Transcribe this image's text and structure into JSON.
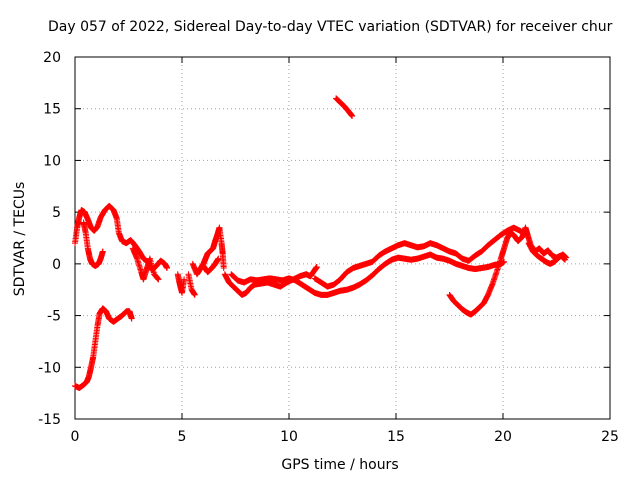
{
  "chart_data": {
    "type": "scatter",
    "title": "Day 057 of 2022, Sidereal Day-to-day VTEC variation (SDTVAR) for receiver chur",
    "xlabel": "GPS time / hours",
    "ylabel": "SDTVAR / TECUs",
    "xlim": [
      0,
      25
    ],
    "ylim": [
      -15,
      20
    ],
    "xticks": [
      0,
      5,
      10,
      15,
      20,
      25
    ],
    "yticks": [
      -15,
      -10,
      -5,
      0,
      5,
      10,
      15,
      20
    ],
    "grid": true,
    "marker": "+",
    "color": "#ff0000",
    "series": [
      {
        "name": "SDTVAR",
        "segments": [
          [
            [
              0,
              2
            ],
            [
              0.1,
              3.5
            ],
            [
              0.2,
              4.5
            ],
            [
              0.3,
              5.2
            ],
            [
              0.45,
              5.0
            ],
            [
              0.6,
              4.3
            ],
            [
              0.75,
              3.5
            ],
            [
              0.9,
              3.2
            ],
            [
              1.05,
              3.6
            ],
            [
              1.2,
              4.5
            ],
            [
              1.4,
              5.2
            ],
            [
              1.6,
              5.6
            ],
            [
              1.8,
              5.2
            ],
            [
              1.95,
              4.4
            ],
            [
              2.05,
              3.0
            ],
            [
              2.2,
              2.2
            ],
            [
              2.4,
              2.0
            ],
            [
              2.6,
              2.3
            ],
            [
              2.8,
              1.8
            ],
            [
              3.0,
              1.2
            ],
            [
              3.2,
              0.5
            ],
            [
              3.4,
              0.2
            ],
            [
              3.6,
              -0.6
            ],
            [
              3.8,
              -0.2
            ],
            [
              4.0,
              0.3
            ],
            [
              4.2,
              0.0
            ],
            [
              4.3,
              -0.4
            ]
          ],
          [
            [
              0.4,
              4.0
            ],
            [
              0.5,
              3.0
            ],
            [
              0.6,
              1.5
            ],
            [
              0.7,
              0.5
            ],
            [
              0.8,
              0.0
            ],
            [
              0.95,
              -0.2
            ],
            [
              1.1,
              0.0
            ],
            [
              1.2,
              0.5
            ],
            [
              1.3,
              1.2
            ]
          ],
          [
            [
              0,
              -11.8
            ],
            [
              0.2,
              -12.0
            ],
            [
              0.4,
              -11.7
            ],
            [
              0.55,
              -11.4
            ],
            [
              0.65,
              -10.9
            ],
            [
              0.75,
              -10.0
            ],
            [
              0.85,
              -9.0
            ],
            [
              0.95,
              -7.5
            ],
            [
              1.05,
              -6.0
            ],
            [
              1.15,
              -4.8
            ],
            [
              1.3,
              -4.3
            ],
            [
              1.45,
              -4.6
            ],
            [
              1.6,
              -5.3
            ],
            [
              1.8,
              -5.6
            ],
            [
              2.0,
              -5.3
            ],
            [
              2.2,
              -5.0
            ],
            [
              2.4,
              -4.6
            ],
            [
              2.55,
              -4.6
            ],
            [
              2.65,
              -5.3
            ]
          ],
          [
            [
              2.7,
              1.5
            ],
            [
              2.9,
              0.5
            ],
            [
              3.1,
              -0.8
            ],
            [
              3.2,
              -1.5
            ],
            [
              3.35,
              -0.5
            ],
            [
              3.5,
              0.5
            ],
            [
              3.7,
              -1.0
            ],
            [
              3.9,
              -1.5
            ]
          ],
          [
            [
              4.8,
              -1.0
            ],
            [
              4.9,
              -2.0
            ],
            [
              5.0,
              -2.8
            ],
            [
              5.1,
              -1.5
            ]
          ],
          [
            [
              5.3,
              -1.0
            ],
            [
              5.45,
              -2.5
            ],
            [
              5.6,
              -3.0
            ]
          ],
          [
            [
              5.5,
              0.0
            ],
            [
              5.7,
              -1.0
            ],
            [
              5.85,
              -0.5
            ],
            [
              6.0,
              0.0
            ],
            [
              6.1,
              0.5
            ],
            [
              6.2,
              1.0
            ],
            [
              6.3,
              1.2
            ],
            [
              6.45,
              1.5
            ],
            [
              6.55,
              2.2
            ],
            [
              6.65,
              2.8
            ],
            [
              6.75,
              3.5
            ],
            [
              6.85,
              2.0
            ],
            [
              6.9,
              1.0
            ],
            [
              6.95,
              -0.4
            ]
          ],
          [
            [
              6.0,
              -0.2
            ],
            [
              6.2,
              -0.8
            ],
            [
              6.4,
              -0.4
            ],
            [
              6.55,
              0.0
            ],
            [
              6.7,
              0.5
            ]
          ],
          [
            [
              7.0,
              -1.0
            ],
            [
              7.2,
              -1.8
            ],
            [
              7.4,
              -2.2
            ],
            [
              7.6,
              -2.6
            ],
            [
              7.8,
              -3.0
            ],
            [
              8.0,
              -2.8
            ],
            [
              8.2,
              -2.3
            ],
            [
              8.4,
              -2.0
            ],
            [
              8.7,
              -1.9
            ],
            [
              9.0,
              -1.8
            ],
            [
              9.3,
              -2.0
            ],
            [
              9.6,
              -2.2
            ],
            [
              9.9,
              -1.8
            ],
            [
              10.2,
              -1.5
            ],
            [
              10.5,
              -1.2
            ],
            [
              10.8,
              -1.0
            ],
            [
              11.0,
              -1.2
            ],
            [
              11.2,
              -0.6
            ],
            [
              11.3,
              -0.3
            ]
          ],
          [
            [
              7.3,
              -1.0
            ],
            [
              7.6,
              -1.6
            ],
            [
              7.9,
              -1.8
            ],
            [
              8.2,
              -1.5
            ],
            [
              8.5,
              -1.6
            ],
            [
              8.8,
              -1.5
            ],
            [
              9.1,
              -1.4
            ],
            [
              9.4,
              -1.5
            ],
            [
              9.7,
              -1.6
            ],
            [
              10.0,
              -1.4
            ],
            [
              10.3,
              -1.6
            ],
            [
              10.6,
              -2.0
            ],
            [
              10.9,
              -2.4
            ],
            [
              11.2,
              -2.8
            ],
            [
              11.5,
              -3.0
            ],
            [
              11.8,
              -3.0
            ],
            [
              12.1,
              -2.8
            ],
            [
              12.4,
              -2.6
            ],
            [
              12.7,
              -2.5
            ],
            [
              13.0,
              -2.3
            ],
            [
              13.3,
              -2.0
            ],
            [
              13.6,
              -1.6
            ],
            [
              13.9,
              -1.1
            ],
            [
              14.2,
              -0.5
            ],
            [
              14.5,
              0.0
            ],
            [
              14.8,
              0.4
            ],
            [
              15.1,
              0.6
            ],
            [
              15.4,
              0.5
            ],
            [
              15.7,
              0.4
            ],
            [
              16.0,
              0.5
            ],
            [
              16.3,
              0.7
            ],
            [
              16.6,
              0.9
            ],
            [
              16.9,
              0.6
            ],
            [
              17.2,
              0.5
            ],
            [
              17.5,
              0.3
            ],
            [
              17.8,
              0.0
            ],
            [
              18.1,
              -0.2
            ],
            [
              18.4,
              -0.4
            ],
            [
              18.7,
              -0.5
            ],
            [
              19.0,
              -0.4
            ],
            [
              19.3,
              -0.3
            ],
            [
              19.6,
              -0.1
            ],
            [
              19.9,
              0.0
            ],
            [
              20.05,
              0.2
            ]
          ],
          [
            [
              11.2,
              -1.4
            ],
            [
              11.5,
              -1.8
            ],
            [
              11.8,
              -2.2
            ],
            [
              12.1,
              -2.0
            ],
            [
              12.4,
              -1.5
            ],
            [
              12.7,
              -0.8
            ],
            [
              13.0,
              -0.4
            ],
            [
              13.3,
              -0.2
            ],
            [
              13.6,
              0.0
            ],
            [
              13.9,
              0.2
            ],
            [
              14.2,
              0.8
            ],
            [
              14.5,
              1.2
            ],
            [
              14.8,
              1.5
            ],
            [
              15.1,
              1.8
            ],
            [
              15.4,
              2.0
            ],
            [
              15.7,
              1.8
            ],
            [
              16.0,
              1.6
            ],
            [
              16.3,
              1.7
            ],
            [
              16.6,
              2.0
            ],
            [
              16.9,
              1.8
            ],
            [
              17.2,
              1.5
            ],
            [
              17.5,
              1.2
            ],
            [
              17.8,
              1.0
            ],
            [
              18.1,
              0.5
            ],
            [
              18.4,
              0.3
            ],
            [
              18.7,
              0.8
            ],
            [
              19.0,
              1.2
            ],
            [
              19.3,
              1.8
            ],
            [
              19.6,
              2.3
            ],
            [
              19.9,
              2.8
            ],
            [
              20.2,
              3.2
            ],
            [
              20.5,
              3.5
            ],
            [
              20.8,
              3.2
            ],
            [
              21.0,
              2.8
            ]
          ],
          [
            [
              12.2,
              16.0
            ],
            [
              12.4,
              15.6
            ],
            [
              12.6,
              15.2
            ],
            [
              12.8,
              14.7
            ],
            [
              12.95,
              14.3
            ]
          ],
          [
            [
              17.5,
              -3.0
            ],
            [
              17.7,
              -3.6
            ],
            [
              17.9,
              -4.0
            ],
            [
              18.1,
              -4.4
            ],
            [
              18.3,
              -4.7
            ],
            [
              18.5,
              -4.9
            ],
            [
              18.7,
              -4.6
            ],
            [
              18.9,
              -4.2
            ],
            [
              19.1,
              -3.8
            ],
            [
              19.3,
              -3.0
            ],
            [
              19.5,
              -2.0
            ],
            [
              19.7,
              -0.8
            ],
            [
              19.9,
              0.5
            ],
            [
              20.05,
              1.5
            ],
            [
              20.2,
              2.5
            ],
            [
              20.35,
              3.0
            ],
            [
              20.5,
              2.8
            ],
            [
              20.7,
              2.2
            ],
            [
              20.9,
              2.6
            ],
            [
              21.05,
              3.5
            ],
            [
              21.15,
              2.8
            ],
            [
              21.3,
              1.8
            ],
            [
              21.5,
              1.2
            ],
            [
              21.7,
              1.5
            ],
            [
              21.9,
              1.0
            ],
            [
              22.1,
              1.3
            ],
            [
              22.3,
              0.8
            ],
            [
              22.5,
              0.6
            ],
            [
              22.7,
              0.8
            ],
            [
              22.9,
              0.4
            ]
          ],
          [
            [
              21.2,
              2.0
            ],
            [
              21.4,
              1.2
            ],
            [
              21.6,
              0.8
            ],
            [
              21.8,
              0.5
            ],
            [
              22.0,
              0.2
            ],
            [
              22.2,
              0.0
            ],
            [
              22.4,
              0.2
            ],
            [
              22.6,
              0.6
            ],
            [
              22.8,
              0.9
            ],
            [
              22.95,
              0.6
            ]
          ]
        ]
      }
    ]
  }
}
